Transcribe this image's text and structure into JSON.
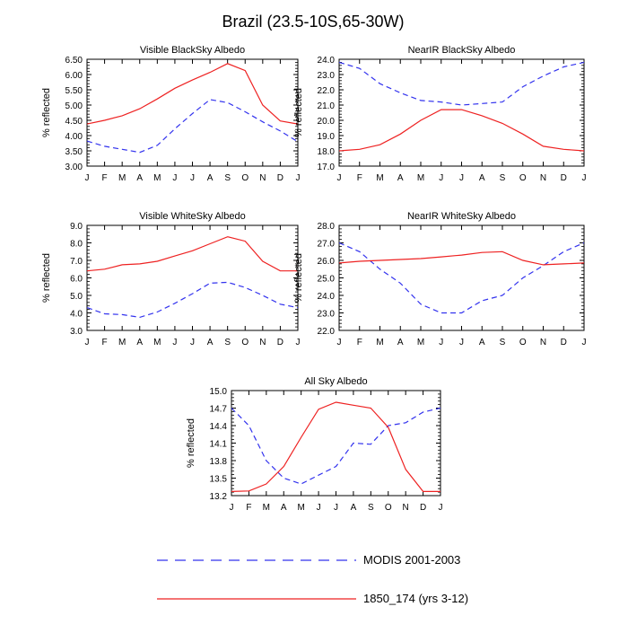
{
  "page_title": "Brazil (23.5-10S,65-30W)",
  "legend": {
    "modis_label": "MODIS 2001-2003",
    "model_label": "1850_174 (yrs 3-12)",
    "modis_color": "#3333ee",
    "model_color": "#ee2222"
  },
  "chart_data": [
    {
      "type": "line",
      "title": "Visible BlackSky Albedo",
      "ylabel": "% reflected",
      "categories": [
        "J",
        "F",
        "M",
        "A",
        "M",
        "J",
        "J",
        "A",
        "S",
        "O",
        "N",
        "D",
        "J"
      ],
      "ylim": [
        3.0,
        6.5
      ],
      "yticks": [
        "3.00",
        "3.50",
        "4.00",
        "4.50",
        "5.00",
        "5.50",
        "6.00",
        "6.50"
      ],
      "series": [
        {
          "name": "MODIS 2001-2003",
          "style": "dashed",
          "values": [
            3.82,
            3.65,
            3.55,
            3.45,
            3.68,
            4.22,
            4.72,
            5.18,
            5.08,
            4.78,
            4.45,
            4.15,
            3.8
          ]
        },
        {
          "name": "1850_174 (yrs 3-12)",
          "style": "solid",
          "values": [
            4.38,
            4.5,
            4.65,
            4.88,
            5.2,
            5.55,
            5.82,
            6.07,
            6.36,
            6.13,
            5.0,
            4.48,
            4.38
          ]
        }
      ]
    },
    {
      "type": "line",
      "title": "NearIR BlackSky Albedo",
      "ylabel": "% reflected",
      "categories": [
        "J",
        "F",
        "M",
        "A",
        "M",
        "J",
        "J",
        "A",
        "S",
        "O",
        "N",
        "D",
        "J"
      ],
      "ylim": [
        17.0,
        24.0
      ],
      "yticks": [
        "17.0",
        "18.0",
        "19.0",
        "20.0",
        "21.0",
        "22.0",
        "23.0",
        "24.0"
      ],
      "series": [
        {
          "name": "MODIS 2001-2003",
          "style": "dashed",
          "values": [
            23.8,
            23.4,
            22.4,
            21.8,
            21.3,
            21.2,
            21.0,
            21.1,
            21.2,
            22.2,
            22.9,
            23.5,
            23.8
          ]
        },
        {
          "name": "1850_174 (yrs 3-12)",
          "style": "solid",
          "values": [
            18.0,
            18.1,
            18.4,
            19.1,
            20.0,
            20.7,
            20.7,
            20.3,
            19.8,
            19.1,
            18.3,
            18.1,
            18.0
          ]
        }
      ]
    },
    {
      "type": "line",
      "title": "Visible WhiteSky Albedo",
      "ylabel": "% reflected",
      "categories": [
        "J",
        "F",
        "M",
        "A",
        "M",
        "J",
        "J",
        "A",
        "S",
        "O",
        "N",
        "D",
        "J"
      ],
      "ylim": [
        3.0,
        9.0
      ],
      "yticks": [
        "3.0",
        "4.0",
        "5.0",
        "6.0",
        "7.0",
        "8.0",
        "9.0"
      ],
      "series": [
        {
          "name": "MODIS 2001-2003",
          "style": "dashed",
          "values": [
            4.3,
            3.95,
            3.9,
            3.75,
            4.05,
            4.55,
            5.1,
            5.7,
            5.75,
            5.45,
            5.0,
            4.5,
            4.3
          ]
        },
        {
          "name": "1850_174 (yrs 3-12)",
          "style": "solid",
          "values": [
            6.4,
            6.5,
            6.75,
            6.8,
            6.95,
            7.25,
            7.55,
            7.95,
            8.35,
            8.1,
            6.95,
            6.4,
            6.4
          ]
        }
      ]
    },
    {
      "type": "line",
      "title": "NearIR WhiteSky Albedo",
      "ylabel": "% reflected",
      "categories": [
        "J",
        "F",
        "M",
        "A",
        "M",
        "J",
        "J",
        "A",
        "S",
        "O",
        "N",
        "D",
        "J"
      ],
      "ylim": [
        22.0,
        28.0
      ],
      "yticks": [
        "22.0",
        "23.0",
        "24.0",
        "25.0",
        "26.0",
        "27.0",
        "28.0"
      ],
      "series": [
        {
          "name": "MODIS 2001-2003",
          "style": "dashed",
          "values": [
            27.0,
            26.5,
            25.5,
            24.7,
            23.5,
            23.0,
            23.0,
            23.7,
            24.0,
            25.0,
            25.7,
            26.5,
            27.0
          ]
        },
        {
          "name": "1850_174 (yrs 3-12)",
          "style": "solid",
          "values": [
            25.85,
            25.95,
            26.0,
            26.05,
            26.1,
            26.2,
            26.3,
            26.45,
            26.5,
            26.0,
            25.75,
            25.8,
            25.85
          ]
        }
      ]
    },
    {
      "type": "line",
      "title": "All Sky Albedo",
      "ylabel": "% reflected",
      "categories": [
        "J",
        "F",
        "M",
        "A",
        "M",
        "J",
        "J",
        "A",
        "S",
        "O",
        "N",
        "D",
        "J"
      ],
      "ylim": [
        13.2,
        15.0
      ],
      "yticks": [
        "13.2",
        "13.5",
        "13.8",
        "14.1",
        "14.4",
        "14.7",
        "15.0"
      ],
      "series": [
        {
          "name": "MODIS 2001-2003",
          "style": "dashed",
          "values": [
            14.7,
            14.4,
            13.8,
            13.5,
            13.4,
            13.55,
            13.7,
            14.1,
            14.08,
            14.4,
            14.45,
            14.63,
            14.7
          ]
        },
        {
          "name": "1850_174 (yrs 3-12)",
          "style": "solid",
          "values": [
            13.27,
            13.28,
            13.4,
            13.7,
            14.2,
            14.68,
            14.8,
            14.75,
            14.7,
            14.37,
            13.65,
            13.27,
            13.27
          ]
        }
      ]
    }
  ]
}
